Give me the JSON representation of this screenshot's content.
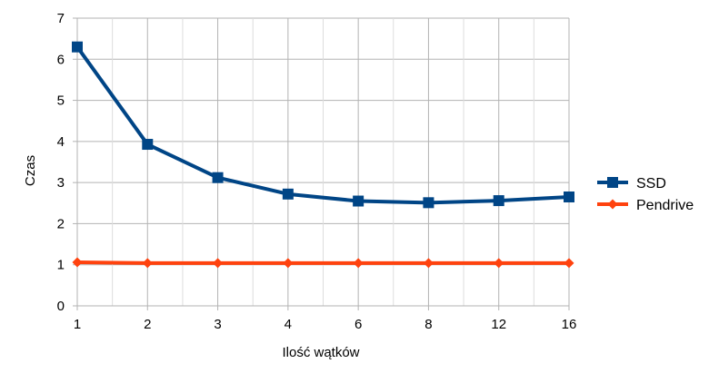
{
  "chart_data": {
    "type": "line",
    "title": "",
    "xlabel": "Ilość wątków",
    "ylabel": "Czas",
    "categories": [
      "1",
      "2",
      "3",
      "4",
      "6",
      "8",
      "12",
      "16"
    ],
    "ylim": [
      0,
      7
    ],
    "yticks": [
      "0",
      "1",
      "2",
      "3",
      "4",
      "5",
      "6",
      "7"
    ],
    "grid": true,
    "legend_position": "right",
    "series": [
      {
        "name": "SSD",
        "values": [
          6.3,
          3.93,
          3.12,
          2.72,
          2.55,
          2.51,
          2.56,
          2.65
        ],
        "color": "#004586",
        "marker": "square"
      },
      {
        "name": "Pendrive",
        "values": [
          1.06,
          1.04,
          1.04,
          1.04,
          1.04,
          1.04,
          1.04,
          1.04
        ],
        "color": "#ff420e",
        "marker": "diamond"
      }
    ]
  }
}
